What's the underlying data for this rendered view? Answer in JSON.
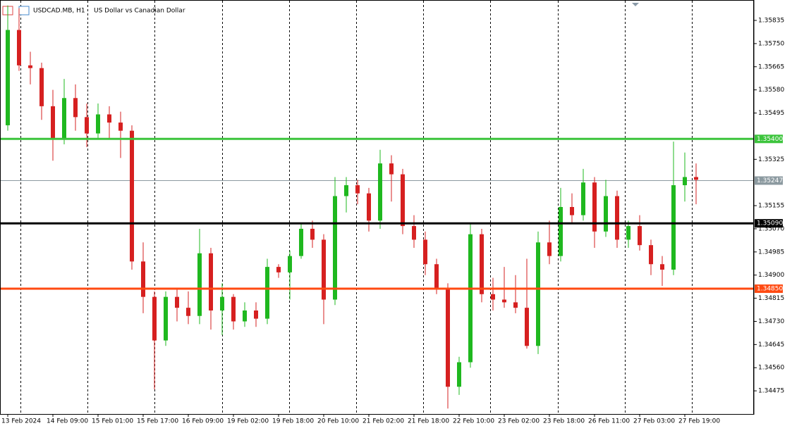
{
  "chart_data": {
    "type": "candlestick",
    "title": "USDCAD.MB, H1",
    "subtitle": "US Dollar vs Canadian Dollar",
    "categories": [
      "13 Feb 2024",
      null,
      null,
      null,
      "14 Feb 09:00",
      null,
      null,
      null,
      "15 Feb 01:00",
      null,
      null,
      null,
      "15 Feb 17:00",
      null,
      null,
      null,
      "16 Feb 09:00",
      null,
      null,
      null,
      "19 Feb 02:00",
      null,
      null,
      null,
      "19 Feb 18:00",
      null,
      null,
      null,
      "20 Feb 10:00",
      null,
      null,
      null,
      "21 Feb 02:00",
      null,
      null,
      null,
      "21 Feb 18:00",
      null,
      null,
      null,
      "22 Feb 10:00",
      null,
      null,
      null,
      "23 Feb 02:00",
      null,
      null,
      null,
      "23 Feb 18:00",
      null,
      null,
      null,
      "26 Feb 11:00",
      null,
      null,
      null,
      "27 Feb 03:00",
      null,
      null,
      null,
      "27 Feb 19:00",
      null
    ],
    "open": [
      1.3545,
      1.358,
      1.3567,
      1.3566,
      1.3552,
      1.354,
      1.3555,
      1.3548,
      1.3542,
      1.3549,
      1.3546,
      1.3543,
      1.3495,
      1.3482,
      1.3466,
      1.3482,
      1.3478,
      1.3475,
      1.3498,
      1.3477,
      1.3482,
      1.3473,
      1.3477,
      1.3474,
      1.3493,
      1.3491,
      1.3497,
      1.3507,
      1.3503,
      1.3481,
      1.3519,
      1.3523,
      1.352,
      1.351,
      1.3531,
      1.3527,
      1.3508,
      1.3503,
      1.3494,
      1.3485,
      1.3449,
      1.3458,
      1.3505,
      1.3483,
      1.3481,
      1.348,
      1.3478,
      1.3464,
      1.3502,
      1.3497,
      1.3515,
      1.3512,
      1.3524,
      1.3506,
      1.3519,
      1.3503,
      1.3508,
      1.3501,
      1.3494,
      1.3492,
      1.3523,
      1.3526
    ],
    "high": [
      1.3589,
      1.3588,
      1.3572,
      1.3568,
      1.3558,
      1.3562,
      1.356,
      1.3553,
      1.3553,
      1.3552,
      1.355,
      1.3545,
      1.3502,
      1.3484,
      1.3484,
      1.3485,
      1.3484,
      1.3507,
      1.35,
      1.3487,
      1.3483,
      1.348,
      1.348,
      1.3496,
      1.3494,
      1.3499,
      1.3509,
      1.351,
      1.3505,
      1.3526,
      1.3526,
      1.3525,
      1.3522,
      1.3536,
      1.3534,
      1.3529,
      1.3512,
      1.3506,
      1.3496,
      1.3487,
      1.346,
      1.3509,
      1.3507,
      1.3489,
      1.3493,
      1.349,
      1.3496,
      1.3506,
      1.351,
      1.3522,
      1.352,
      1.3529,
      1.3526,
      1.3525,
      1.3521,
      1.351,
      1.3512,
      1.3503,
      1.3497,
      1.3539,
      1.3535,
      1.3531
    ],
    "low": [
      1.3543,
      1.3565,
      1.356,
      1.3547,
      1.3532,
      1.3538,
      1.3543,
      1.3537,
      1.354,
      1.354,
      1.3533,
      1.3492,
      1.3476,
      1.3448,
      1.3464,
      1.3473,
      1.3472,
      1.3472,
      1.347,
      1.3468,
      1.347,
      1.3471,
      1.3471,
      1.3472,
      1.3489,
      1.3481,
      1.3496,
      1.35,
      1.3472,
      1.3479,
      1.3513,
      1.3516,
      1.3506,
      1.3507,
      1.3517,
      1.3505,
      1.35,
      1.349,
      1.3483,
      1.3441,
      1.3446,
      1.3456,
      1.348,
      1.3477,
      1.3478,
      1.3476,
      1.3463,
      1.3461,
      1.3494,
      1.3495,
      1.3509,
      1.351,
      1.35,
      1.3504,
      1.35,
      1.35,
      1.3499,
      1.349,
      1.3486,
      1.349,
      1.3517,
      1.3516
    ],
    "close": [
      1.358,
      1.3567,
      1.3566,
      1.3552,
      1.354,
      1.3555,
      1.3548,
      1.3542,
      1.3549,
      1.3546,
      1.3543,
      1.3495,
      1.3482,
      1.3466,
      1.3482,
      1.3478,
      1.3475,
      1.3498,
      1.3477,
      1.3482,
      1.3473,
      1.3477,
      1.3474,
      1.3493,
      1.3491,
      1.3497,
      1.3507,
      1.3503,
      1.3481,
      1.3519,
      1.3523,
      1.352,
      1.351,
      1.3531,
      1.3527,
      1.3508,
      1.3503,
      1.3494,
      1.3485,
      1.3449,
      1.3458,
      1.3505,
      1.3483,
      1.3481,
      1.348,
      1.3478,
      1.3464,
      1.3502,
      1.3497,
      1.3515,
      1.3512,
      1.3524,
      1.3506,
      1.3519,
      1.3503,
      1.3508,
      1.3501,
      1.3494,
      1.3492,
      1.3523,
      1.3526,
      1.3525
    ],
    "up_color": "#1fb81f",
    "down_color": "#d62020",
    "ylim": [
      1.3439,
      1.3591
    ],
    "yticks": [
      1.34475,
      {
        "value": 1.3456,
        "label": "1.34560"
      },
      1.34645,
      {
        "value": 1.3473,
        "label": "1.34730"
      },
      1.34815,
      {
        "value": 1.349,
        "label": "1.34900"
      },
      1.34985,
      {
        "value": 1.3507,
        "label": "1.35070"
      },
      1.35155,
      1.35325,
      1.35495,
      {
        "value": 1.3558,
        "label": "1.35580"
      },
      1.35665,
      {
        "value": 1.3575,
        "label": "1.35750"
      },
      1.35835
    ],
    "levels": [
      {
        "value": 1.354,
        "label": "1.35400",
        "color": "#3cc43c"
      },
      {
        "value": 1.3509,
        "label": "1.35090",
        "color": "#000000"
      },
      {
        "value": 1.3485,
        "label": "1.34850",
        "color": "#ff4a12"
      }
    ],
    "price": {
      "value": 1.35247,
      "label": "1.35247"
    }
  }
}
